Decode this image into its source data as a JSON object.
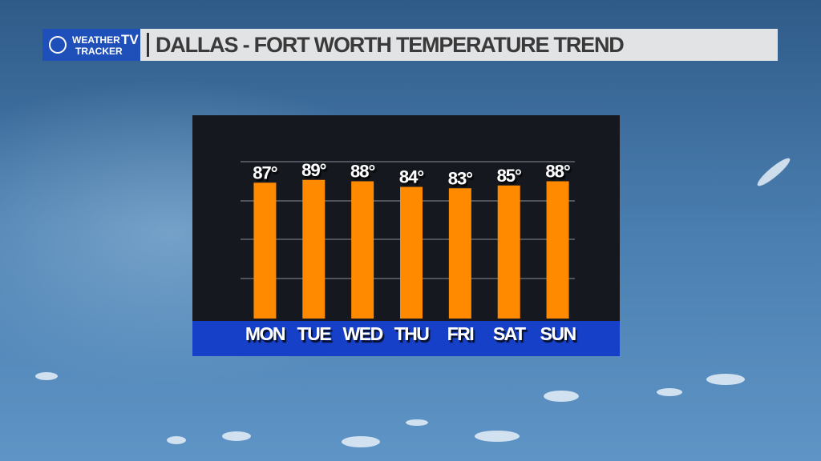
{
  "brand": {
    "line1": "WEATHER",
    "line2": "TRACKER",
    "badge": "TV"
  },
  "chart_data": {
    "type": "bar",
    "title": "DALLAS - FORT WORTH TEMPERATURE TREND",
    "categories": [
      "MON",
      "TUE",
      "WED",
      "THU",
      "FRI",
      "SAT",
      "SUN"
    ],
    "values": [
      87,
      89,
      88,
      84,
      83,
      85,
      88
    ],
    "value_labels": [
      "87°",
      "89°",
      "88°",
      "84°",
      "83°",
      "85°",
      "88°"
    ],
    "color": "#ff8a00",
    "ylim": [
      -10,
      102
    ],
    "grid": true
  }
}
